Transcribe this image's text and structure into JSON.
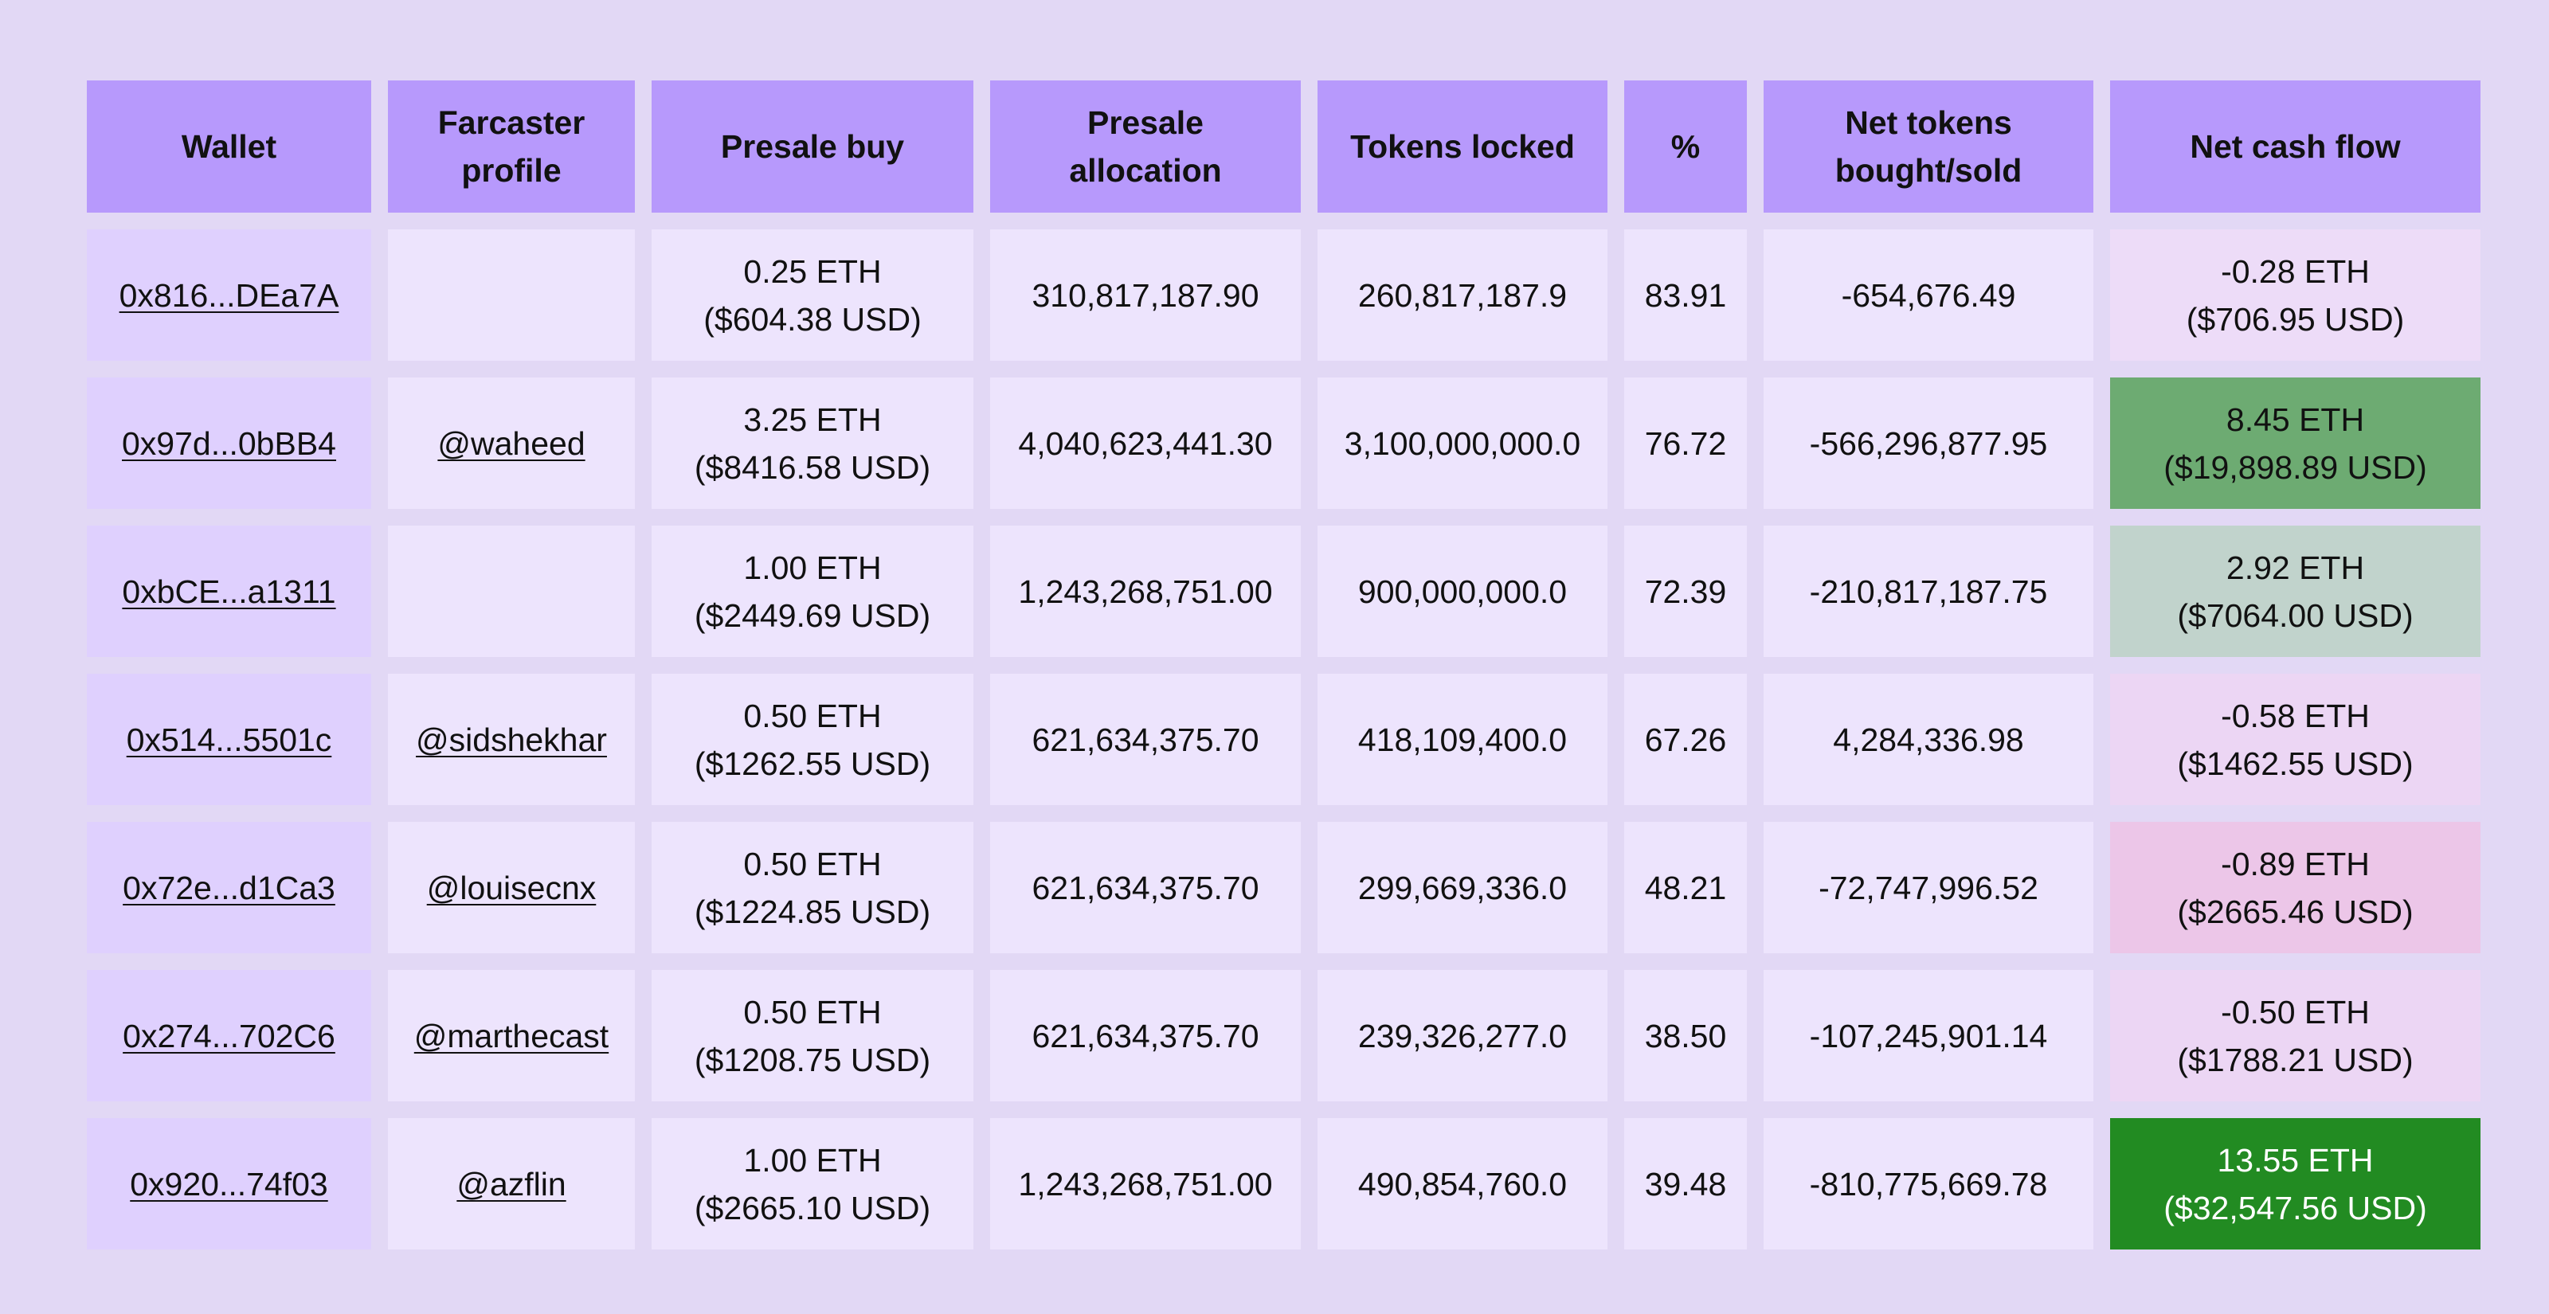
{
  "header": {
    "wallet": "Wallet",
    "farcaster_line1": "Farcaster",
    "farcaster_line2": "profile",
    "presale_buy": "Presale buy",
    "presale_allocation_line1": "Presale",
    "presale_allocation_line2": "allocation",
    "tokens_locked": "Tokens locked",
    "percent": "%",
    "net_tokens_line1": "Net tokens",
    "net_tokens_line2": "bought/sold",
    "net_cash_flow": "Net cash flow"
  },
  "colors": {
    "page_background": "#e2d8f5",
    "header_background": "#b799fc",
    "cell_background": "#ede4fd",
    "wallet_cell_background": "#dfd0fe"
  },
  "rows": [
    {
      "wallet": "0x816...DEa7A",
      "farcaster": "",
      "presale_buy_eth": "0.25 ETH",
      "presale_buy_usd": "($604.38 USD)",
      "presale_allocation": "310,817,187.90",
      "tokens_locked": "260,817,187.9",
      "percent": "83.91",
      "net_tokens": "-654,676.49",
      "net_cash_eth": "-0.28 ETH",
      "net_cash_usd": "($706.95 USD)",
      "net_cash_color": "#eddcf8",
      "net_cash_text_color": "#111111"
    },
    {
      "wallet": "0x97d...0bBB4",
      "farcaster": "@waheed",
      "presale_buy_eth": "3.25 ETH",
      "presale_buy_usd": "($8416.58 USD)",
      "presale_allocation": "4,040,623,441.30",
      "tokens_locked": "3,100,000,000.0",
      "percent": "76.72",
      "net_tokens": "-566,296,877.95",
      "net_cash_eth": "8.45 ETH",
      "net_cash_usd": "($19,898.89 USD)",
      "net_cash_color": "#6dab72",
      "net_cash_text_color": "#111111"
    },
    {
      "wallet": "0xbCE...a1311",
      "farcaster": "",
      "presale_buy_eth": "1.00 ETH",
      "presale_buy_usd": "($2449.69 USD)",
      "presale_allocation": "1,243,268,751.00",
      "tokens_locked": "900,000,000.0",
      "percent": "72.39",
      "net_tokens": "-210,817,187.75",
      "net_cash_eth": "2.92 ETH",
      "net_cash_usd": "($7064.00 USD)",
      "net_cash_color": "#c1d3cc",
      "net_cash_text_color": "#111111"
    },
    {
      "wallet": "0x514...5501c",
      "farcaster": "@sidshekhar",
      "presale_buy_eth": "0.50 ETH",
      "presale_buy_usd": "($1262.55 USD)",
      "presale_allocation": "621,634,375.70",
      "tokens_locked": "418,109,400.0",
      "percent": "67.26",
      "net_tokens": "4,284,336.98",
      "net_cash_eth": "-0.58 ETH",
      "net_cash_usd": "($1462.55 USD)",
      "net_cash_color": "#ecd6f4",
      "net_cash_text_color": "#111111"
    },
    {
      "wallet": "0x72e...d1Ca3",
      "farcaster": "@louisecnx",
      "presale_buy_eth": "0.50 ETH",
      "presale_buy_usd": "($1224.85 USD)",
      "presale_allocation": "621,634,375.70",
      "tokens_locked": "299,669,336.0",
      "percent": "48.21",
      "net_tokens": "-72,747,996.52",
      "net_cash_eth": "-0.89 ETH",
      "net_cash_usd": "($2665.46 USD)",
      "net_cash_color": "#ecc6e8",
      "net_cash_text_color": "#111111"
    },
    {
      "wallet": "0x274...702C6",
      "farcaster": "@marthecast",
      "presale_buy_eth": "0.50 ETH",
      "presale_buy_usd": "($1208.75 USD)",
      "presale_allocation": "621,634,375.70",
      "tokens_locked": "239,326,277.0",
      "percent": "38.50",
      "net_tokens": "-107,245,901.14",
      "net_cash_eth": "-0.50 ETH",
      "net_cash_usd": "($1788.21 USD)",
      "net_cash_color": "#ecd6f4",
      "net_cash_text_color": "#111111"
    },
    {
      "wallet": "0x920...74f03",
      "farcaster": "@azflin",
      "presale_buy_eth": "1.00 ETH",
      "presale_buy_usd": "($2665.10 USD)",
      "presale_allocation": "1,243,268,751.00",
      "tokens_locked": "490,854,760.0",
      "percent": "39.48",
      "net_tokens": "-810,775,669.78",
      "net_cash_eth": "13.55 ETH",
      "net_cash_usd": "($32,547.56 USD)",
      "net_cash_color": "#228b22",
      "net_cash_text_color": "#ffffff"
    }
  ]
}
